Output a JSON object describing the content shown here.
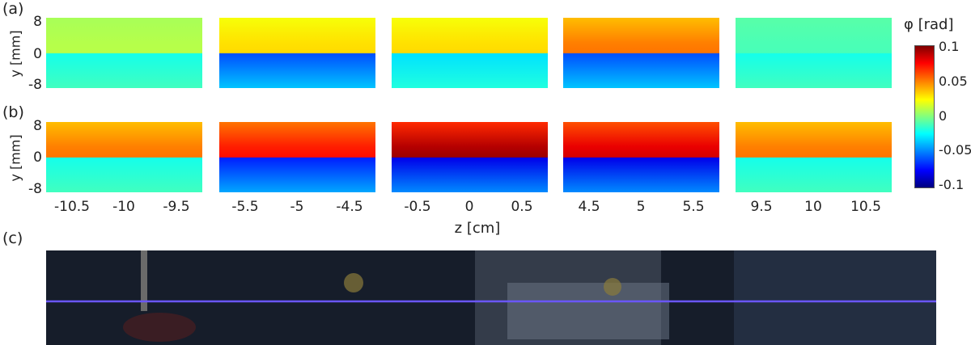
{
  "panel_labels": {
    "a": "(a)",
    "b": "(b)",
    "c": "(c)"
  },
  "chart_data": {
    "type": "heatmap",
    "title": "",
    "xlabel": "z [cm]",
    "ylabel": "y [mm]",
    "yticks": [
      "8",
      "0",
      "-8"
    ],
    "ylim": [
      -8,
      8
    ],
    "colorbar": {
      "label": "φ [rad]",
      "ticks": [
        "0.1",
        "0.05",
        "0",
        "-0.05",
        "-0.1"
      ],
      "range": [
        -0.1,
        0.1
      ],
      "colormap": "jet"
    },
    "windows": [
      {
        "ticks": [
          "-10.5",
          "-10",
          "-9.5"
        ],
        "range": [
          -10.5,
          -9.5
        ]
      },
      {
        "ticks": [
          "-5.5",
          "-5",
          "-4.5"
        ],
        "range": [
          -5.5,
          -4.5
        ]
      },
      {
        "ticks": [
          "-0.5",
          "0",
          "0.5"
        ],
        "range": [
          -0.5,
          0.5
        ]
      },
      {
        "ticks": [
          "4.5",
          "5",
          "5.5"
        ],
        "range": [
          4.5,
          5.5
        ]
      },
      {
        "ticks": [
          "9.5",
          "10",
          "10.5"
        ],
        "range": [
          9.5,
          10.5
        ]
      }
    ],
    "rows": [
      {
        "label": "(a)",
        "upper_phase": [
          0.01,
          0.03,
          0.03,
          0.05,
          -0.01
        ],
        "lower_phase": [
          -0.02,
          -0.06,
          -0.03,
          -0.06,
          -0.02
        ]
      },
      {
        "label": "(b)",
        "upper_phase": [
          0.05,
          0.07,
          0.09,
          0.08,
          0.05
        ],
        "lower_phase": [
          -0.02,
          -0.07,
          -0.08,
          -0.08,
          -0.02
        ]
      }
    ]
  },
  "colors": {
    "photo_background": "#161d2a",
    "beam": "#6a56ff"
  }
}
